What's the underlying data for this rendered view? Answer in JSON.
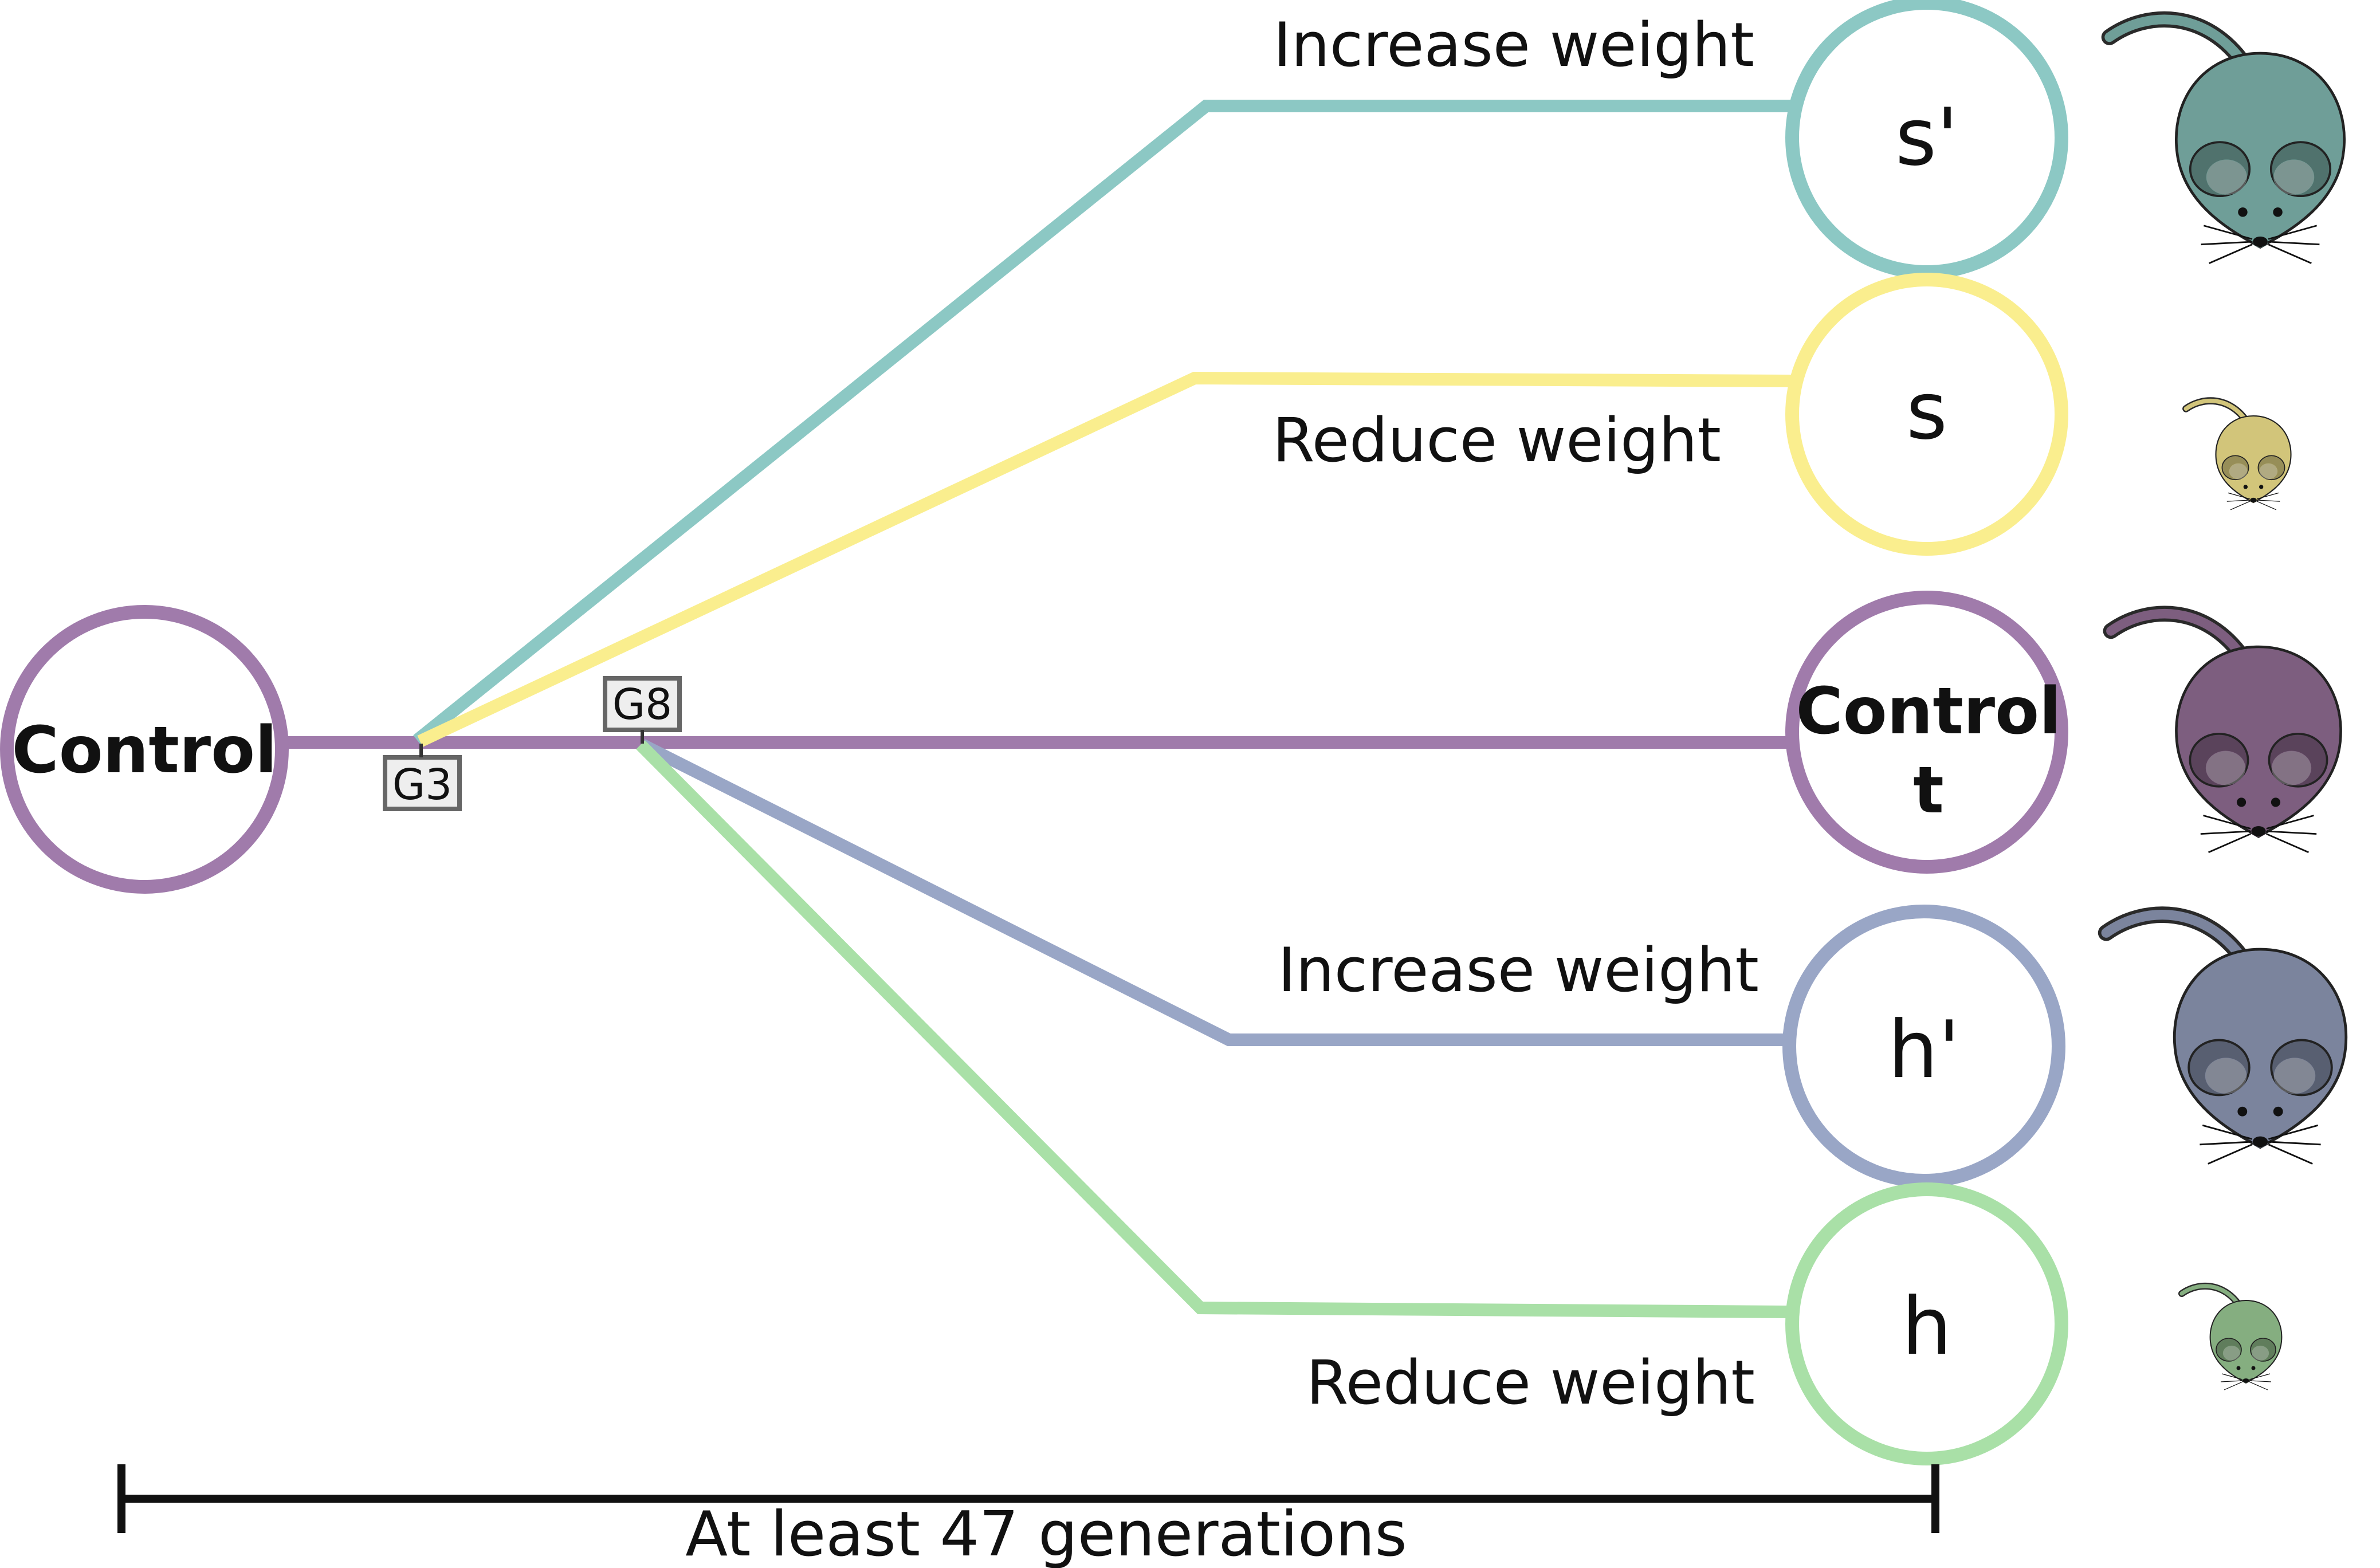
{
  "colors": {
    "control": "#A07BAB",
    "s_prime": "#8CC8C4",
    "s": "#FAEE8E",
    "h_prime": "#99A6C6",
    "h": "#A9E0A7",
    "mouse_control": "#7D5E7F",
    "mouse_s_prime": "#6F9E98",
    "mouse_s": "#D2C57A",
    "mouse_h_prime": "#7B849D",
    "mouse_h": "#85AE80"
  },
  "diagram": {
    "start_node": {
      "label": "Control"
    },
    "generation_markers": {
      "g3": "G3",
      "g8": "G8"
    },
    "branches": [
      {
        "id": "s_prime",
        "node_label": "s'",
        "branch_label": "Increase weight",
        "mouse_icon": "large-mouse-icon"
      },
      {
        "id": "s",
        "node_label": "s",
        "branch_label": "Reduce weight",
        "mouse_icon": "small-mouse-icon"
      },
      {
        "id": "control",
        "node_label_line1": "Control",
        "node_label_line2": "t",
        "mouse_icon": "large-mouse-icon"
      },
      {
        "id": "h_prime",
        "node_label": "h'",
        "branch_label": "Increase weight",
        "mouse_icon": "large-mouse-icon"
      },
      {
        "id": "h",
        "node_label": "h",
        "branch_label": "Reduce weight",
        "mouse_icon": "small-mouse-icon"
      }
    ],
    "timeline": {
      "label": "At least 47 generations"
    }
  }
}
